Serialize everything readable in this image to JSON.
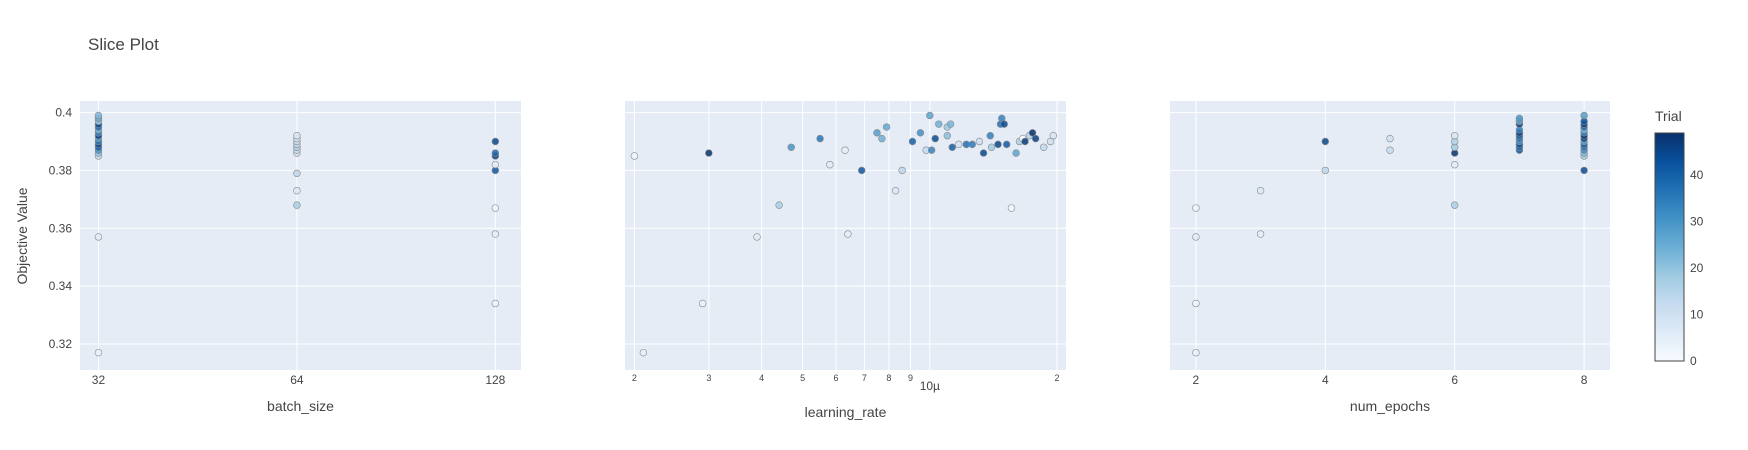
{
  "chart_data": {
    "type": "scatter",
    "title": "Slice Plot",
    "ylabel": "Objective Value",
    "ylim": [
      0.311,
      0.404
    ],
    "yticks": [
      0.32,
      0.34,
      0.36,
      0.38,
      0.4
    ],
    "ytick_labels": [
      "0.32",
      "0.34",
      "0.36",
      "0.38",
      "0.4"
    ],
    "colorbar": {
      "title": "Trial",
      "range": [
        0,
        49
      ],
      "ticks": [
        0,
        10,
        20,
        30,
        40
      ],
      "tick_labels": [
        "0",
        "10",
        "20",
        "30",
        "40"
      ]
    },
    "colorscale": [
      "#f7fbff",
      "#deebf7",
      "#c6dbef",
      "#9ecae1",
      "#6baed6",
      "#4292c6",
      "#2171b5",
      "#08519c",
      "#08306b"
    ],
    "panels": [
      {
        "xlabel": "batch_size",
        "scale": "log2",
        "xlim": [
          30,
          140
        ],
        "xticks": [
          32,
          64,
          128
        ],
        "xtick_labels": [
          "32",
          "64",
          "128"
        ],
        "points": [
          [
            32,
            0.317,
            4
          ],
          [
            32,
            0.357,
            6
          ],
          [
            32,
            0.385,
            12
          ],
          [
            32,
            0.386,
            20
          ],
          [
            32,
            0.387,
            30
          ],
          [
            32,
            0.388,
            40
          ],
          [
            32,
            0.389,
            44
          ],
          [
            32,
            0.39,
            36
          ],
          [
            32,
            0.391,
            28
          ],
          [
            32,
            0.392,
            46
          ],
          [
            32,
            0.393,
            33
          ],
          [
            32,
            0.394,
            24
          ],
          [
            32,
            0.395,
            38
          ],
          [
            32,
            0.396,
            45
          ],
          [
            32,
            0.397,
            18
          ],
          [
            32,
            0.398,
            26
          ],
          [
            32,
            0.399,
            22
          ],
          [
            64,
            0.368,
            17
          ],
          [
            64,
            0.373,
            7
          ],
          [
            64,
            0.379,
            14
          ],
          [
            64,
            0.386,
            10
          ],
          [
            64,
            0.387,
            13
          ],
          [
            64,
            0.388,
            16
          ],
          [
            64,
            0.389,
            12
          ],
          [
            64,
            0.39,
            11
          ],
          [
            64,
            0.391,
            9
          ],
          [
            64,
            0.392,
            8
          ],
          [
            128,
            0.334,
            3
          ],
          [
            128,
            0.358,
            5
          ],
          [
            128,
            0.367,
            2
          ],
          [
            128,
            0.38,
            42
          ],
          [
            128,
            0.382,
            6
          ],
          [
            128,
            0.385,
            47
          ],
          [
            128,
            0.386,
            38
          ],
          [
            128,
            0.39,
            45
          ]
        ]
      },
      {
        "xlabel": "learning_rate",
        "scale": "log10",
        "xlim": [
          1.9e-06,
          2.1e-05
        ],
        "xticks": [
          2e-06,
          3e-06,
          4e-06,
          5e-06,
          6e-06,
          7e-06,
          8e-06,
          9e-06,
          1e-05,
          2e-05
        ],
        "xtick_labels": [
          "2",
          "3",
          "4",
          "5",
          "6",
          "7",
          "8",
          "9",
          "10µ",
          "2"
        ],
        "major_tick_label": "10µ",
        "points": [
          [
            2e-06,
            0.385,
            2
          ],
          [
            2.1e-06,
            0.317,
            4
          ],
          [
            2.9e-06,
            0.334,
            3
          ],
          [
            3e-06,
            0.386,
            49
          ],
          [
            3.9e-06,
            0.357,
            6
          ],
          [
            4.4e-06,
            0.368,
            17
          ],
          [
            4.7e-06,
            0.388,
            30
          ],
          [
            5.5e-06,
            0.391,
            36
          ],
          [
            5.8e-06,
            0.382,
            6
          ],
          [
            6.3e-06,
            0.387,
            5
          ],
          [
            6.4e-06,
            0.358,
            5
          ],
          [
            6.9e-06,
            0.38,
            42
          ],
          [
            7.5e-06,
            0.393,
            28
          ],
          [
            7.7e-06,
            0.391,
            24
          ],
          [
            7.9e-06,
            0.395,
            26
          ],
          [
            8.3e-06,
            0.373,
            7
          ],
          [
            8.6e-06,
            0.38,
            14
          ],
          [
            9.1e-06,
            0.39,
            40
          ],
          [
            9.5e-06,
            0.393,
            31
          ],
          [
            9.8e-06,
            0.387,
            12
          ],
          [
            1e-05,
            0.399,
            27
          ],
          [
            1.01e-05,
            0.387,
            33
          ],
          [
            1.03e-05,
            0.391,
            44
          ],
          [
            1.05e-05,
            0.396,
            24
          ],
          [
            1.1e-05,
            0.392,
            21
          ],
          [
            1.1e-05,
            0.395,
            19
          ],
          [
            1.12e-05,
            0.396,
            23
          ],
          [
            1.13e-05,
            0.388,
            40
          ],
          [
            1.17e-05,
            0.389,
            9
          ],
          [
            1.22e-05,
            0.389,
            37
          ],
          [
            1.26e-05,
            0.389,
            35
          ],
          [
            1.31e-05,
            0.39,
            11
          ],
          [
            1.34e-05,
            0.386,
            45
          ],
          [
            1.39e-05,
            0.392,
            34
          ],
          [
            1.4e-05,
            0.388,
            18
          ],
          [
            1.45e-05,
            0.389,
            45
          ],
          [
            1.47e-05,
            0.396,
            37
          ],
          [
            1.48e-05,
            0.398,
            33
          ],
          [
            1.5e-05,
            0.396,
            44
          ],
          [
            1.52e-05,
            0.389,
            41
          ],
          [
            1.56e-05,
            0.367,
            1
          ],
          [
            1.6e-05,
            0.386,
            27
          ],
          [
            1.63e-05,
            0.39,
            16
          ],
          [
            1.66e-05,
            0.391,
            0
          ],
          [
            1.68e-05,
            0.39,
            47
          ],
          [
            1.72e-05,
            0.392,
            15
          ],
          [
            1.75e-05,
            0.393,
            49
          ],
          [
            1.78e-05,
            0.391,
            46
          ],
          [
            1.86e-05,
            0.388,
            13
          ],
          [
            1.93e-05,
            0.39,
            10
          ],
          [
            1.96e-05,
            0.392,
            8
          ]
        ]
      },
      {
        "xlabel": "num_epochs",
        "scale": "linear",
        "xlim": [
          1.6,
          8.4
        ],
        "xticks": [
          2,
          4,
          6,
          8
        ],
        "xtick_labels": [
          "2",
          "4",
          "6",
          "8"
        ],
        "points": [
          [
            2,
            0.317,
            4
          ],
          [
            2,
            0.334,
            3
          ],
          [
            2,
            0.357,
            6
          ],
          [
            2,
            0.367,
            2
          ],
          [
            3,
            0.358,
            5
          ],
          [
            3,
            0.373,
            7
          ],
          [
            4,
            0.38,
            14
          ],
          [
            4,
            0.39,
            45
          ],
          [
            5,
            0.387,
            12
          ],
          [
            5,
            0.391,
            10
          ],
          [
            6,
            0.368,
            17
          ],
          [
            6,
            0.382,
            6
          ],
          [
            6,
            0.386,
            49
          ],
          [
            6,
            0.388,
            18
          ],
          [
            6,
            0.39,
            16
          ],
          [
            6,
            0.392,
            8
          ],
          [
            7,
            0.387,
            42
          ],
          [
            7,
            0.388,
            38
          ],
          [
            7,
            0.389,
            44
          ],
          [
            7,
            0.39,
            30
          ],
          [
            7,
            0.391,
            36
          ],
          [
            7,
            0.392,
            40
          ],
          [
            7,
            0.393,
            46
          ],
          [
            7,
            0.394,
            34
          ],
          [
            7,
            0.396,
            47
          ],
          [
            7,
            0.397,
            26
          ],
          [
            7,
            0.398,
            29
          ],
          [
            8,
            0.38,
            44
          ],
          [
            8,
            0.385,
            18
          ],
          [
            8,
            0.386,
            22
          ],
          [
            8,
            0.387,
            31
          ],
          [
            8,
            0.388,
            36
          ],
          [
            8,
            0.389,
            40
          ],
          [
            8,
            0.39,
            27
          ],
          [
            8,
            0.391,
            45
          ],
          [
            8,
            0.392,
            48
          ],
          [
            8,
            0.393,
            33
          ],
          [
            8,
            0.394,
            24
          ],
          [
            8,
            0.395,
            38
          ],
          [
            8,
            0.396,
            46
          ],
          [
            8,
            0.397,
            42
          ],
          [
            8,
            0.399,
            28
          ]
        ]
      }
    ]
  }
}
